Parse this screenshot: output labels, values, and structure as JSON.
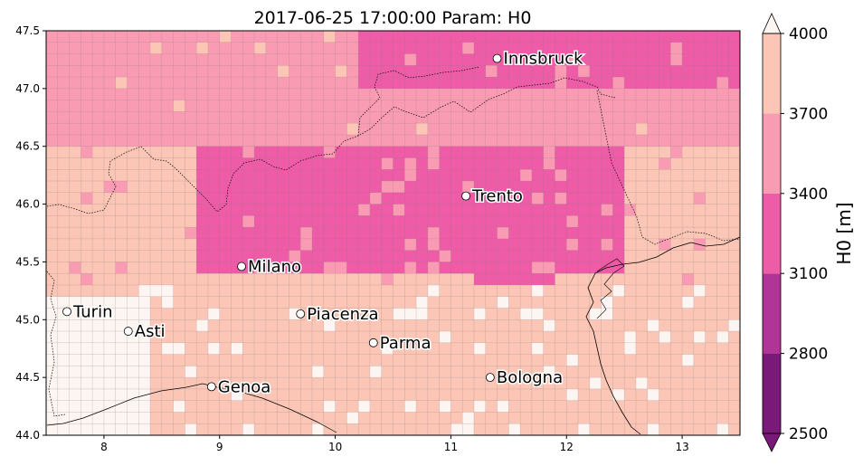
{
  "title": "2017-06-25 17:00:00 Param: H0",
  "map": {
    "lon_range": [
      7.5,
      13.5
    ],
    "lat_range": [
      44.0,
      47.5
    ],
    "x_ticks": [
      "8",
      "9",
      "10",
      "11",
      "12",
      "13"
    ],
    "y_ticks": [
      "44.0",
      "44.5",
      "45.0",
      "45.5",
      "46.0",
      "46.5",
      "47.0",
      "47.5"
    ],
    "levels": [
      2500,
      2800,
      3100,
      3400,
      3700,
      4000
    ],
    "level_colors": [
      "#7a1a78",
      "#b03596",
      "#ee5ca8",
      "#fa9bb4",
      "#fcc6b6",
      "#fdf5f2"
    ],
    "grid_on": true,
    "cities": [
      {
        "name": "Innsbruck",
        "lon": 11.4,
        "lat": 47.26
      },
      {
        "name": "Trento",
        "lon": 11.13,
        "lat": 46.07
      },
      {
        "name": "Milano",
        "lon": 9.19,
        "lat": 45.46
      },
      {
        "name": "Turin",
        "lon": 7.68,
        "lat": 45.07
      },
      {
        "name": "Asti",
        "lon": 8.21,
        "lat": 44.9
      },
      {
        "name": "Piacenza",
        "lon": 9.7,
        "lat": 45.05
      },
      {
        "name": "Parma",
        "lon": 10.33,
        "lat": 44.8
      },
      {
        "name": "Genoa",
        "lon": 8.93,
        "lat": 44.42
      },
      {
        "name": "Bologna",
        "lon": 11.34,
        "lat": 44.5
      }
    ]
  },
  "colorbar": {
    "label": "H0  [m]",
    "ticks": [
      "2500",
      "2800",
      "3100",
      "3400",
      "3700",
      "4000"
    ],
    "extend": "both"
  }
}
